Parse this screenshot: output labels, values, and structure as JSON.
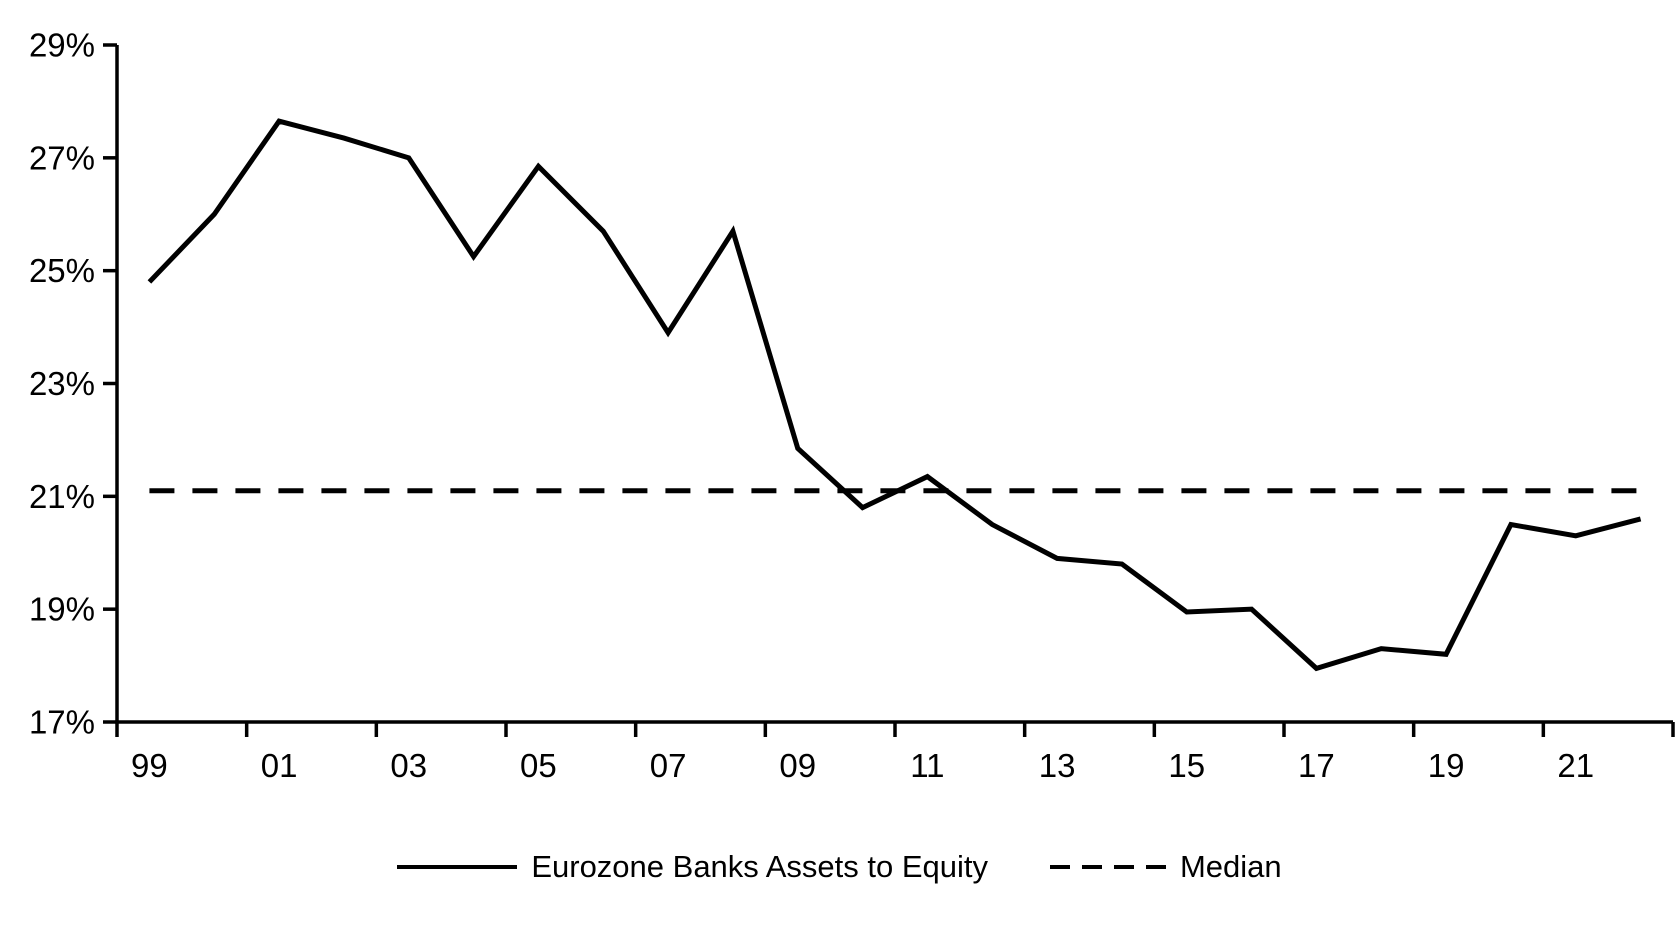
{
  "chart_data": {
    "type": "line",
    "title": "",
    "x": [
      1999,
      2000,
      2001,
      2002,
      2003,
      2004,
      2005,
      2006,
      2007,
      2008,
      2009,
      2010,
      2011,
      2012,
      2013,
      2014,
      2015,
      2016,
      2017,
      2018,
      2019,
      2020,
      2021,
      2022
    ],
    "x_tick_labels": [
      "99",
      "01",
      "03",
      "05",
      "07",
      "09",
      "11",
      "13",
      "15",
      "17",
      "19",
      "21"
    ],
    "y_tick_labels": [
      "17%",
      "19%",
      "21%",
      "23%",
      "25%",
      "27%",
      "29%"
    ],
    "ylim": [
      17,
      29
    ],
    "y_tick_step": 2,
    "grid": false,
    "legend_position": "bottom-center",
    "series": [
      {
        "name": "Eurozone Banks Assets to Equity",
        "type": "line",
        "style": "solid",
        "color": "#000000",
        "values": [
          24.8,
          26.0,
          27.65,
          27.35,
          27.0,
          25.25,
          26.85,
          25.7,
          23.9,
          25.7,
          21.85,
          20.8,
          21.35,
          20.5,
          19.9,
          19.8,
          18.95,
          19.0,
          17.95,
          18.3,
          18.2,
          20.5,
          20.3,
          20.6
        ]
      },
      {
        "name": "Median",
        "type": "hline",
        "style": "dashed",
        "color": "#000000",
        "value": 21.1
      }
    ]
  },
  "legend": {
    "series1_label": "Eurozone Banks Assets to Equity",
    "series2_label": "Median"
  },
  "colors": {
    "axis": "#000000",
    "text": "#000000",
    "background": "#ffffff"
  }
}
